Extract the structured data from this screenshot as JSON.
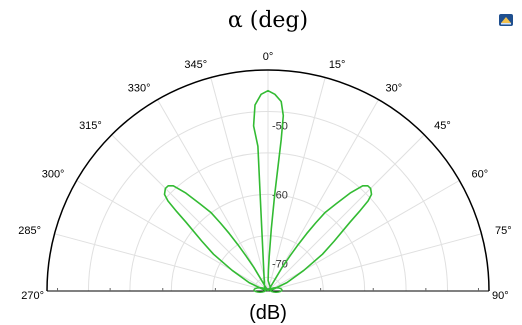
{
  "chart_data": {
    "type": "polar-line",
    "title": "α (deg)",
    "rlabel": "(dB)",
    "theta_ticks": [
      "270°",
      "285°",
      "300°",
      "315°",
      "330°",
      "345°",
      "0°",
      "15°",
      "30°",
      "45°",
      "60°",
      "75°",
      "90°"
    ],
    "theta_range": [
      -90,
      90
    ],
    "r_ticks": [
      "-50",
      "-60",
      "-70"
    ],
    "r_tick_values": [
      -50,
      -60,
      -70
    ],
    "rlim": [
      -74,
      -42
    ],
    "grid": true,
    "series": [
      {
        "color": "#33bb33",
        "points": [
          [
            -30,
            -74
          ],
          [
            -31,
            -73
          ],
          [
            -31,
            -72
          ],
          [
            -31,
            -70
          ],
          [
            -32,
            -68
          ],
          [
            -33,
            -66
          ],
          [
            -34,
            -64
          ],
          [
            -35,
            -62
          ],
          [
            -36,
            -60
          ],
          [
            -38,
            -58
          ],
          [
            -40,
            -55.5
          ],
          [
            -42,
            -53.5
          ],
          [
            -43.5,
            -53
          ],
          [
            -45,
            -53
          ],
          [
            -47,
            -53.5
          ],
          [
            -48,
            -54.5
          ],
          [
            -49,
            -56.5
          ],
          [
            -50,
            -58.5
          ],
          [
            -53,
            -62
          ],
          [
            -56,
            -64.5
          ],
          [
            -60,
            -68
          ],
          [
            -66,
            -71
          ],
          [
            -75,
            -73.5
          ],
          [
            -5,
            -62
          ],
          [
            -4,
            -53
          ],
          [
            -5,
            -50
          ],
          [
            -4,
            -47
          ],
          [
            -2,
            -45.5
          ],
          [
            0,
            -45
          ],
          [
            2,
            -45.5
          ],
          [
            4,
            -46.5
          ],
          [
            5,
            -48.5
          ],
          [
            5,
            -52
          ],
          [
            4,
            -60
          ],
          [
            3,
            -65
          ],
          [
            2,
            -69
          ],
          [
            1,
            -71
          ],
          [
            0.5,
            -72.5
          ],
          [
            75,
            -73.5
          ],
          [
            66,
            -71
          ],
          [
            60,
            -68
          ],
          [
            56,
            -64.5
          ],
          [
            53,
            -62
          ],
          [
            50,
            -58.5
          ],
          [
            49,
            -56.5
          ],
          [
            48,
            -54.5
          ],
          [
            47,
            -53.5
          ],
          [
            45,
            -53
          ],
          [
            43.5,
            -53
          ],
          [
            42,
            -53.5
          ],
          [
            40,
            -55.5
          ],
          [
            38,
            -58
          ],
          [
            36,
            -60
          ],
          [
            35,
            -62
          ],
          [
            34,
            -64
          ],
          [
            33,
            -66
          ],
          [
            32,
            -68
          ],
          [
            31,
            -70
          ],
          [
            31,
            -72
          ],
          [
            31,
            -73
          ],
          [
            30,
            -74
          ]
        ]
      }
    ]
  },
  "logo": {
    "name": "app-logo-icon"
  }
}
